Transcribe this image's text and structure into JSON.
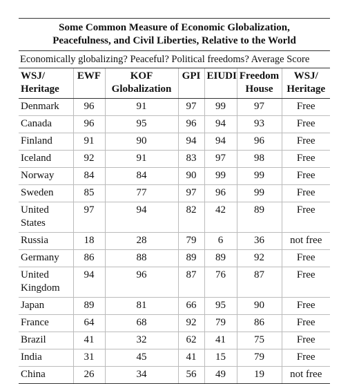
{
  "title": [
    "Some Common Measure of Economic Globalization,",
    "Peacefulness, and Civil Liberties, Relative to the World"
  ],
  "subtitle": "Economically globalizing? Peaceful? Political freedoms? Average Score",
  "table": {
    "columns": [
      [
        "WSJ/",
        "Heritage"
      ],
      [
        "EWF"
      ],
      [
        "KOF",
        "Globalization"
      ],
      [
        "GPI"
      ],
      [
        "EIUDI"
      ],
      [
        "Freedom",
        "House"
      ],
      [
        "WSJ/",
        "Heritage"
      ]
    ],
    "rows": [
      [
        "Denmark",
        96,
        91,
        97,
        99,
        97,
        "Free"
      ],
      [
        "Canada",
        96,
        95,
        96,
        94,
        93,
        "Free"
      ],
      [
        "Finland",
        91,
        90,
        94,
        94,
        96,
        "Free"
      ],
      [
        "Iceland",
        92,
        91,
        83,
        97,
        98,
        "Free"
      ],
      [
        "Norway",
        84,
        84,
        90,
        99,
        99,
        "Free"
      ],
      [
        "Sweden",
        85,
        77,
        97,
        96,
        99,
        "Free"
      ],
      [
        "United States",
        97,
        94,
        82,
        42,
        89,
        "Free"
      ],
      [
        "Russia",
        18,
        28,
        79,
        6,
        36,
        "not free"
      ],
      [
        "Germany",
        86,
        88,
        89,
        89,
        92,
        "Free"
      ],
      [
        "United Kingdom",
        94,
        96,
        87,
        76,
        87,
        "Free"
      ],
      [
        "Japan",
        89,
        81,
        66,
        95,
        90,
        "Free"
      ],
      [
        "France",
        64,
        68,
        92,
        79,
        86,
        "Free"
      ],
      [
        "Brazil",
        41,
        32,
        62,
        41,
        75,
        "Free"
      ],
      [
        "India",
        31,
        45,
        41,
        15,
        79,
        "Free"
      ],
      [
        "China",
        26,
        34,
        56,
        49,
        19,
        "not free"
      ]
    ]
  }
}
